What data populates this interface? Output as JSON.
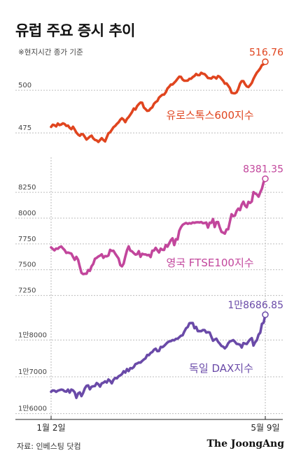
{
  "header": {
    "title": "유럽 주요 증시 추이",
    "subtitle": "※현지시간 종가 기준"
  },
  "footer": {
    "source": "자료: 인베스팅 닷컴",
    "brand": "The JoongAng"
  },
  "chart_data": [
    {
      "type": "line",
      "name": "유로스톡스600지수",
      "color": "#e0451f",
      "ylim": [
        466,
        521
      ],
      "yticks": [
        475,
        500
      ],
      "ytick_labels": [
        "475",
        "500"
      ],
      "last_label": "516.76",
      "x_first": "1월 2일",
      "x_last": "5월 9일",
      "values": [
        478.5,
        479.8,
        479.5,
        478.8,
        480.5,
        479.6,
        479.9,
        480.6,
        480.2,
        479.1,
        479.3,
        478.0,
        477.2,
        478.6,
        477.0,
        475.2,
        474.0,
        473.3,
        474.3,
        474.1,
        472.6,
        471.1,
        471.9,
        472.8,
        473.4,
        471.8,
        470.9,
        470.6,
        469.7,
        470.8,
        471.9,
        470.8,
        470.0,
        472.4,
        474.8,
        475.3,
        476.8,
        478.3,
        479.1,
        480.3,
        481.2,
        482.7,
        483.6,
        482.8,
        481.3,
        483.2,
        484.3,
        485.7,
        487.3,
        489.3,
        488.7,
        490.7,
        491.9,
        492.8,
        492.7,
        489.9,
        489.0,
        487.9,
        488.1,
        489.3,
        490.0,
        492.1,
        493.1,
        493.7,
        495.7,
        496.6,
        497.4,
        497.5,
        498.8,
        501.1,
        502.1,
        503.4,
        503.4,
        504.4,
        505.5,
        506.8,
        508.0,
        507.9,
        506.3,
        505.6,
        505.6,
        505.7,
        506.7,
        506.8,
        507.8,
        508.4,
        509.6,
        508.9,
        508.9,
        510.3,
        509.7,
        509.5,
        508.5,
        507.2,
        507.1,
        506.9,
        507.9,
        507.7,
        506.9,
        508.4,
        507.9,
        506.7,
        505.6,
        503.9,
        504.1,
        502.7,
        501.3,
        498.5,
        498.3,
        498.2,
        498.8,
        500.8,
        503.9,
        505.4,
        505.4,
        503.6,
        502.3,
        501.9,
        503.0,
        504.3,
        506.7,
        508.6,
        510.4,
        511.5,
        512.9,
        514.8,
        515.3,
        516.76
      ]
    },
    {
      "type": "line",
      "name": "영국 FTSE100지수",
      "color": "#c2469c",
      "ylim": [
        7200,
        8420
      ],
      "yticks": [
        7250,
        7500,
        7750,
        8000,
        8250
      ],
      "ytick_labels": [
        "7250",
        "7500",
        "7750",
        "8000",
        "8250"
      ],
      "last_label": "8381.35",
      "x_first": "1월 2일",
      "x_last": "5월 9일",
      "values": [
        7716,
        7701,
        7687,
        7705,
        7702,
        7718,
        7725,
        7706,
        7690,
        7662,
        7666,
        7661,
        7656,
        7624,
        7595,
        7624,
        7595,
        7529,
        7469,
        7457,
        7460,
        7460,
        7497,
        7488,
        7533,
        7555,
        7605,
        7614,
        7628,
        7636,
        7649,
        7615,
        7632,
        7629,
        7637,
        7692,
        7682,
        7683,
        7655,
        7631,
        7608,
        7545,
        7532,
        7558,
        7626,
        7687,
        7726,
        7684,
        7677,
        7660,
        7646,
        7650,
        7679,
        7624,
        7654,
        7649,
        7648,
        7640,
        7643,
        7622,
        7684,
        7685,
        7712,
        7688,
        7667,
        7704,
        7693,
        7691,
        7739,
        7723,
        7755,
        7786,
        7804,
        7738,
        7796,
        7793,
        7877,
        7911,
        7935,
        7945,
        7953,
        7944,
        7951,
        7947,
        7958,
        7954,
        7959,
        7960,
        7958,
        7962,
        7950,
        7952,
        7957,
        7908,
        7955,
        7954,
        7991,
        7913,
        7961,
        7962,
        7910,
        7866,
        7859,
        7849,
        7890,
        7891,
        7966,
        8038,
        8019,
        8024,
        8068,
        8092,
        8077,
        8130,
        8159,
        8121,
        8105,
        8158,
        8147,
        8161,
        8252,
        8240,
        8228,
        8208,
        8250,
        8285,
        8349,
        8381.35
      ]
    },
    {
      "type": "line",
      "name": "독일 DAX지수",
      "color": "#6a4aa8",
      "ylim": [
        15840,
        18880
      ],
      "yticks": [
        16000,
        17000,
        18000
      ],
      "ytick_labels": [
        "1만6000",
        "1만7000",
        "1만8000"
      ],
      "last_label": "1만8686.85",
      "x_first": "1월 2일",
      "x_last": "5월 9일",
      "values": [
        16595,
        16629,
        16622,
        16590,
        16620,
        16637,
        16652,
        16641,
        16604,
        16595,
        16651,
        16570,
        16654,
        16631,
        16578,
        16427,
        16547,
        16575,
        16475,
        16564,
        16685,
        16754,
        16766,
        16659,
        16729,
        16742,
        16748,
        16830,
        16798,
        16733,
        16823,
        16838,
        16875,
        16844,
        16926,
        16886,
        16820,
        16920,
        16969,
        16957,
        17015,
        17037,
        17072,
        17151,
        17113,
        17210,
        17154,
        17237,
        17227,
        17265,
        17344,
        17362,
        17387,
        17384,
        17430,
        17470,
        17501,
        17593,
        17587,
        17648,
        17673,
        17737,
        17762,
        17696,
        17701,
        17812,
        17805,
        17836,
        17885,
        17934,
        17962,
        17968,
        17999,
        17990,
        18030,
        18032,
        18075,
        18116,
        18127,
        18229,
        18317,
        18352,
        18457,
        18461,
        18460,
        18320,
        18353,
        18240,
        18241,
        18240,
        18272,
        18268,
        18201,
        18213,
        18205,
        18089,
        17979,
        18012,
        18034,
        17952,
        17901,
        17837,
        17817,
        17772,
        17819,
        17909,
        17962,
        17975,
        17997,
        17952,
        17894,
        17889,
        17872,
        17795,
        17917,
        17902,
        17891,
        17959,
        18016,
        18052,
        17848,
        17938,
        17999,
        18144,
        18200,
        18439,
        18469,
        18686.85
      ]
    }
  ]
}
